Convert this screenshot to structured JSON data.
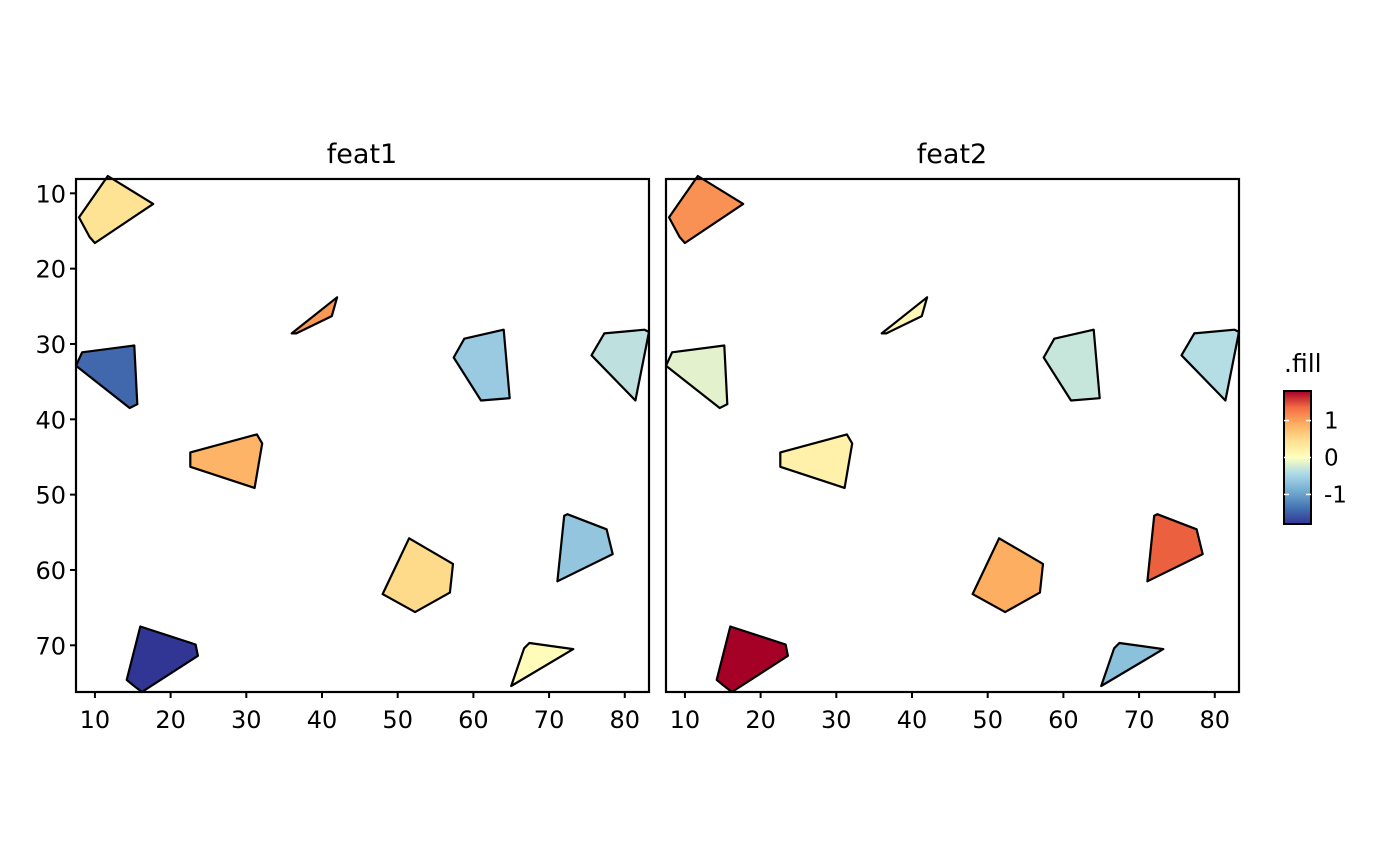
{
  "chart_data": {
    "type": "polygon-facet",
    "facet_titles": [
      "feat1",
      "feat2"
    ],
    "xlim": [
      7.5,
      83.2
    ],
    "ylim": [
      76.2,
      8.1
    ],
    "x_ticks": [
      10,
      20,
      30,
      40,
      50,
      60,
      70,
      80
    ],
    "y_ticks": [
      10,
      20,
      30,
      40,
      50,
      60,
      70
    ],
    "x_tick_labels": [
      "10",
      "20",
      "30",
      "40",
      "50",
      "60",
      "70",
      "80"
    ],
    "y_tick_labels": [
      "10",
      "20",
      "30",
      "40",
      "50",
      "60",
      "70"
    ],
    "legend": {
      "title": ".fill",
      "position": "right",
      "range": [
        -1.8,
        1.8
      ],
      "ticks": [
        1,
        0,
        -1
      ],
      "tick_labels": [
        "1",
        "0",
        "-1"
      ]
    },
    "colorscale": [
      {
        "v": -1.8,
        "color": "#313695"
      },
      {
        "v": -1.35,
        "color": "#4575b4"
      },
      {
        "v": -0.9,
        "color": "#74add1"
      },
      {
        "v": -0.45,
        "color": "#abd9e9"
      },
      {
        "v": 0.0,
        "color": "#ffffbf"
      },
      {
        "v": 0.45,
        "color": "#fee090"
      },
      {
        "v": 0.9,
        "color": "#fdae61"
      },
      {
        "v": 1.35,
        "color": "#f46d43"
      },
      {
        "v": 1.8,
        "color": "#a50026"
      }
    ],
    "cells": [
      {
        "id": 1,
        "coords": [
          [
            11.7,
            7.7
          ],
          [
            17.7,
            11.4
          ],
          [
            10.0,
            16.6
          ],
          [
            9.3,
            15.8
          ],
          [
            7.9,
            13.2
          ]
        ],
        "values": [
          0.4,
          1.1
        ]
      },
      {
        "id": 2,
        "coords": [
          [
            36.0,
            28.6
          ],
          [
            42.0,
            23.8
          ],
          [
            41.3,
            26.3
          ],
          [
            36.6,
            28.6
          ]
        ],
        "values": [
          1.05,
          0.1
        ]
      },
      {
        "id": 3,
        "coords": [
          [
            8.3,
            31.1
          ],
          [
            15.2,
            30.2
          ],
          [
            15.6,
            38.0
          ],
          [
            14.6,
            38.5
          ],
          [
            7.5,
            32.9
          ]
        ],
        "values": [
          -1.45,
          -0.15
        ]
      },
      {
        "id": 4,
        "coords": [
          [
            58.8,
            29.3
          ],
          [
            64.0,
            28.1
          ],
          [
            64.8,
            37.2
          ],
          [
            61.0,
            37.5
          ],
          [
            57.4,
            31.8
          ]
        ],
        "values": [
          -0.6,
          -0.3
        ]
      },
      {
        "id": 5,
        "coords": [
          [
            77.3,
            28.6
          ],
          [
            82.6,
            28.1
          ],
          [
            83.2,
            28.4
          ],
          [
            81.4,
            37.5
          ],
          [
            75.6,
            31.5
          ]
        ],
        "values": [
          -0.35,
          -0.4
        ]
      },
      {
        "id": 6,
        "coords": [
          [
            22.6,
            44.4
          ],
          [
            31.4,
            42.0
          ],
          [
            32.1,
            43.2
          ],
          [
            31.1,
            49.1
          ],
          [
            22.6,
            46.3
          ]
        ],
        "values": [
          0.85,
          0.2
        ]
      },
      {
        "id": 7,
        "coords": [
          [
            72.4,
            52.6
          ],
          [
            77.6,
            54.6
          ],
          [
            78.4,
            57.9
          ],
          [
            71.1,
            61.5
          ],
          [
            72.0,
            52.8
          ]
        ],
        "values": [
          -0.65,
          1.4
        ]
      },
      {
        "id": 8,
        "coords": [
          [
            51.5,
            55.8
          ],
          [
            57.3,
            59.2
          ],
          [
            56.9,
            63.0
          ],
          [
            52.3,
            65.6
          ],
          [
            48.0,
            63.2
          ]
        ],
        "values": [
          0.5,
          0.9
        ]
      },
      {
        "id": 9,
        "coords": [
          [
            16.0,
            67.5
          ],
          [
            23.3,
            69.9
          ],
          [
            23.6,
            71.4
          ],
          [
            16.2,
            76.2
          ],
          [
            14.8,
            75.1
          ],
          [
            14.2,
            74.6
          ]
        ],
        "values": [
          -1.8,
          1.8
        ]
      },
      {
        "id": 10,
        "coords": [
          [
            67.4,
            69.7
          ],
          [
            73.2,
            70.5
          ],
          [
            65.0,
            75.4
          ],
          [
            66.7,
            70.4
          ]
        ],
        "values": [
          0.05,
          -0.7
        ]
      }
    ]
  }
}
